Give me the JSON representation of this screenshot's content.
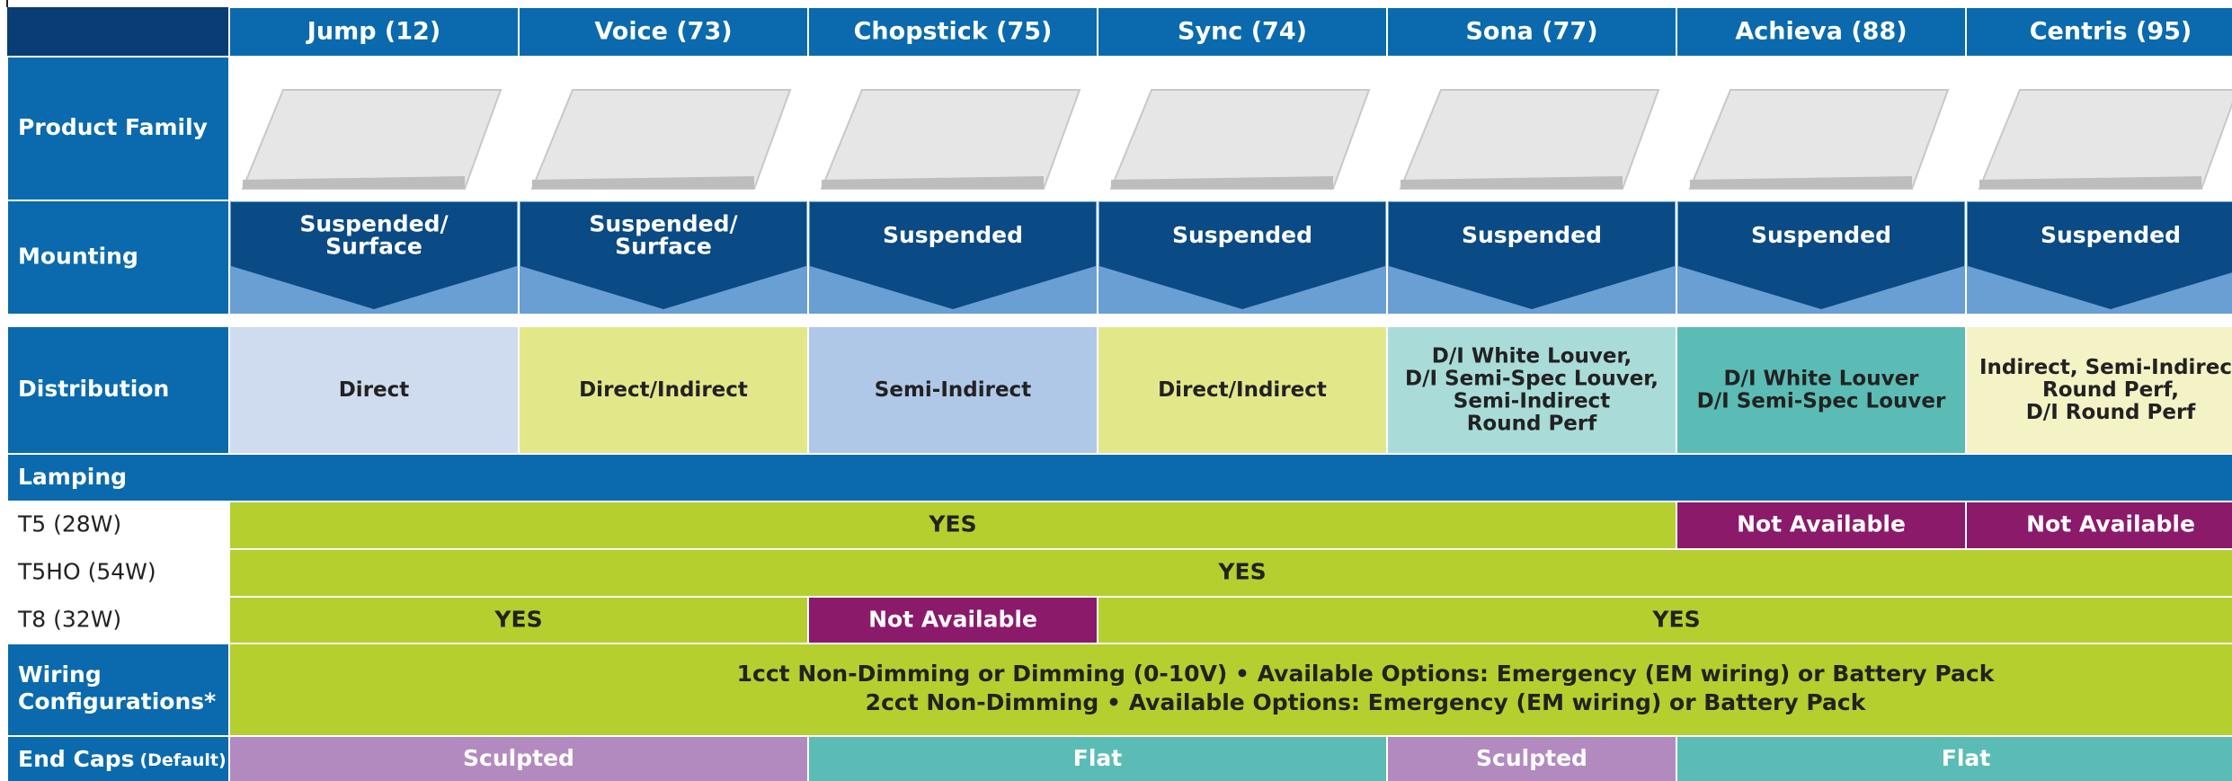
{
  "columns": [
    {
      "name": "Jump (12)",
      "mounting": [
        "Suspended/",
        "Surface"
      ],
      "distribution": {
        "lines": [
          "Direct"
        ],
        "color": "#cfdcef"
      }
    },
    {
      "name": "Voice (73)",
      "mounting": [
        "Suspended/",
        "Surface"
      ],
      "distribution": {
        "lines": [
          "Direct/Indirect"
        ],
        "color": "#e2e88a"
      }
    },
    {
      "name": "Chopstick (75)",
      "mounting": [
        "Suspended"
      ],
      "distribution": {
        "lines": [
          "Semi-Indirect"
        ],
        "color": "#b0c8e8"
      }
    },
    {
      "name": "Sync (74)",
      "mounting": [
        "Suspended"
      ],
      "distribution": {
        "lines": [
          "Direct/Indirect"
        ],
        "color": "#e2e88a"
      }
    },
    {
      "name": "Sona (77)",
      "mounting": [
        "Suspended"
      ],
      "distribution": {
        "lines": [
          "D/I White Louver,",
          "D/I Semi-Spec Louver,",
          "Semi-Indirect",
          "Round Perf"
        ],
        "color": "#a9dcd9"
      }
    },
    {
      "name": "Achieva (88)",
      "mounting": [
        "Suspended"
      ],
      "distribution": {
        "lines": [
          "D/I White Louver",
          "D/I Semi-Spec Louver"
        ],
        "color": "#5bbcb5"
      }
    },
    {
      "name": "Centris (95)",
      "mounting": [
        "Suspended"
      ],
      "distribution": {
        "lines": [
          "Indirect, Semi-Indirect",
          "Round Perf,",
          "D/I Round Perf"
        ],
        "color": "#f3f3c6"
      }
    }
  ],
  "row_labels": {
    "product_family": "Product Family",
    "mounting": "Mounting",
    "distribution": "Distribution",
    "lamping": "Lamping",
    "wiring": [
      "Wiring",
      "Configurations*"
    ],
    "end_caps": "End Caps",
    "end_caps_note": "(Default)"
  },
  "lamping": [
    {
      "label": "T5 (28W)",
      "cells": [
        {
          "text": "YES",
          "span": 5,
          "color": "#b5cf2e"
        },
        {
          "text": "Not Available",
          "span": 1,
          "color": "#8b1a6b"
        },
        {
          "text": "Not Available",
          "span": 1,
          "color": "#8b1a6b"
        }
      ]
    },
    {
      "label": "T5HO (54W)",
      "cells": [
        {
          "text": "YES",
          "span": 7,
          "color": "#b5cf2e"
        }
      ]
    },
    {
      "label": "T8 (32W)",
      "cells": [
        {
          "text": "YES",
          "span": 2,
          "color": "#b5cf2e"
        },
        {
          "text": "Not Available",
          "span": 1,
          "color": "#8b1a6b"
        },
        {
          "text": "YES",
          "span": 4,
          "color": "#b5cf2e"
        }
      ]
    }
  ],
  "wiring": [
    "1cct Non-Dimming or Dimming (0-10V)  •  Available Options: Emergency (EM wiring) or Battery Pack",
    "2cct Non-Dimming  •  Available Options: Emergency (EM wiring) or Battery Pack"
  ],
  "end_caps": [
    {
      "text": "Sculpted",
      "span": 2,
      "color": "#b28ac0"
    },
    {
      "text": "Flat",
      "span": 2,
      "color": "#5bbcb5"
    },
    {
      "text": "Sculpted",
      "span": 1,
      "color": "#b28ac0"
    },
    {
      "text": "Flat",
      "span": 2,
      "color": "#5bbcb5"
    }
  ]
}
